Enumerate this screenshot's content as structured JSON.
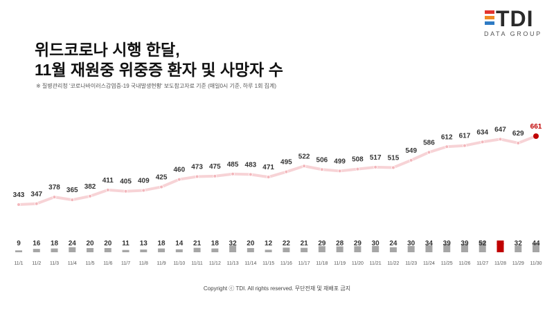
{
  "title": {
    "line1": "위드코로나 시행 한달,",
    "line2": "11월 재원중 위중증 환자 및 사망자 수"
  },
  "note": "※ 질병관리청 '코로나바이러스감염증-19 국내발생현황' 보도참고자료 기준 (매일0시 기준, 하루 1회 집계)",
  "logo": {
    "word": "TDI",
    "subtitle": "DATA GROUP",
    "bar_colors": [
      "#e3342f",
      "#f08a24",
      "#2e7bc4"
    ]
  },
  "footer": "Copyright ⓒ TDI. All rights reserved. 무단전재 및 재배포 금지",
  "colors": {
    "line": "#f7d3d6",
    "highlight": "#c00000",
    "bar": "#a6a6a6"
  },
  "chart_data": {
    "type": "line",
    "categories": [
      "11/1",
      "11/2",
      "11/3",
      "11/4",
      "11/5",
      "11/6",
      "11/7",
      "11/8",
      "11/9",
      "11/10",
      "11/11",
      "11/12",
      "11/13",
      "11/14",
      "11/15",
      "11/16",
      "11/17",
      "11/18",
      "11/19",
      "11/20",
      "11/21",
      "11/22",
      "11/23",
      "11/24",
      "11/25",
      "11/26",
      "11/27",
      "11/28",
      "11/29",
      "11/30"
    ],
    "series": [
      {
        "type": "line",
        "values": [
          343,
          347,
          378,
          365,
          382,
          411,
          405,
          409,
          425,
          460,
          473,
          475,
          485,
          483,
          471,
          495,
          522,
          506,
          499,
          508,
          517,
          515,
          549,
          586,
          612,
          617,
          634,
          647,
          629,
          661
        ],
        "highlight_index": 29
      },
      {
        "type": "bar",
        "values": [
          9,
          16,
          18,
          24,
          20,
          20,
          11,
          13,
          18,
          14,
          21,
          18,
          32,
          20,
          12,
          22,
          21,
          29,
          28,
          29,
          30,
          24,
          30,
          34,
          39,
          39,
          52,
          56,
          32,
          44
        ],
        "highlight_index": 27
      }
    ],
    "grid": false,
    "legend": "none"
  }
}
